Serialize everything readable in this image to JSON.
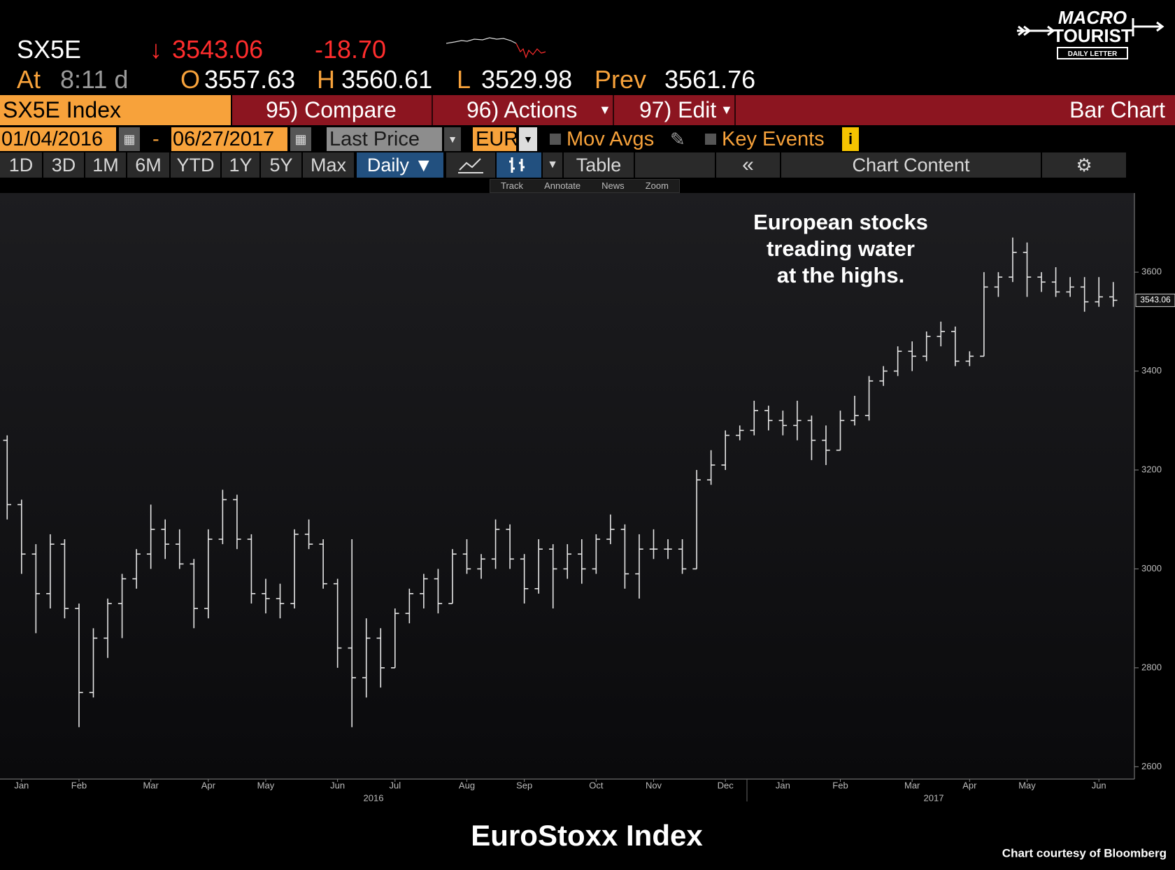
{
  "header": {
    "ticker": "SX5E",
    "direction": "↓",
    "last": "3543.06",
    "change": "-18.70",
    "at_label": "At",
    "time": "8:11 d",
    "open_label": "O",
    "open": "3557.63",
    "high_label": "H",
    "high": "3560.61",
    "low_label": "L",
    "low": "3529.98",
    "prev_label": "Prev",
    "prev": "3561.76"
  },
  "toolbar": {
    "security": "SX5E Index",
    "compare": "95) Compare",
    "actions": "96) Actions",
    "edit": "97) Edit",
    "chart_type": "Bar Chart",
    "start_date": "01/04/2016",
    "date_sep": "-",
    "end_date": "06/27/2017",
    "field": "Last Price",
    "currency": "EUR",
    "mov_avgs": "Mov Avgs",
    "key_events": "Key Events",
    "ranges": [
      "1D",
      "3D",
      "1M",
      "6M",
      "YTD",
      "1Y",
      "5Y",
      "Max"
    ],
    "frequency": "Daily ▼",
    "table": "Table",
    "chart_content": "Chart Content",
    "tools": [
      "Track",
      "Annotate",
      "News",
      "Zoom"
    ]
  },
  "logo": {
    "line1": "MACRO",
    "line2": "TOURIST",
    "line3": "DAILY LETTER"
  },
  "chart_data": {
    "type": "ohlc",
    "title": "EuroStoxx Index",
    "source": "Chart courtesy of Bloomberg",
    "annotation": [
      "European stocks",
      "treading water",
      "at the highs."
    ],
    "years": [
      "2016",
      "2017"
    ],
    "color": "#e6e6e6",
    "ylim": [
      2575,
      3760
    ],
    "yticks": [
      2600,
      2800,
      3000,
      3200,
      3400,
      3600
    ],
    "categories": [
      null,
      "Jan",
      null,
      null,
      null,
      "Feb",
      null,
      null,
      null,
      null,
      "Mar",
      null,
      null,
      null,
      "Apr",
      null,
      null,
      null,
      "May",
      null,
      null,
      null,
      null,
      "Jun",
      null,
      null,
      null,
      "Jul",
      null,
      null,
      null,
      null,
      "Aug",
      null,
      null,
      null,
      "Sep",
      null,
      null,
      null,
      null,
      "Oct",
      null,
      null,
      null,
      "Nov",
      null,
      null,
      null,
      null,
      "Dec",
      null,
      null,
      null,
      "Jan",
      null,
      null,
      null,
      "Feb",
      null,
      null,
      null,
      null,
      "Mar",
      null,
      null,
      null,
      "Apr",
      null,
      null,
      null,
      "May",
      null,
      null,
      null,
      null,
      "Jun",
      null
    ],
    "open": [
      3260,
      3130,
      3030,
      2950,
      3050,
      2920,
      2750,
      2860,
      2930,
      2980,
      3030,
      3080,
      3050,
      3010,
      2920,
      3060,
      3140,
      3060,
      2950,
      2940,
      2930,
      3070,
      3050,
      2970,
      2840,
      2780,
      2860,
      2800,
      2910,
      2950,
      2980,
      2930,
      3030,
      3000,
      3020,
      3080,
      3020,
      2960,
      3040,
      3000,
      3030,
      3000,
      3060,
      3080,
      2990,
      3040,
      3040,
      3040,
      3000,
      3180,
      3210,
      3270,
      3280,
      3320,
      3300,
      3290,
      3300,
      3260,
      3240,
      3300,
      3310,
      3380,
      3400,
      3440,
      3430,
      3470,
      3480,
      3420,
      3430,
      3570,
      3590,
      3640,
      3590,
      3580,
      3560,
      3570,
      3540,
      3550
    ],
    "high": [
      3270,
      3140,
      3050,
      3070,
      3060,
      2930,
      2880,
      2940,
      2990,
      3040,
      3130,
      3100,
      3080,
      3020,
      3080,
      3160,
      3150,
      3070,
      2980,
      2970,
      3080,
      3100,
      3060,
      2980,
      3060,
      2900,
      2880,
      2920,
      2960,
      2990,
      3000,
      3040,
      3060,
      3030,
      3100,
      3090,
      3030,
      3060,
      3050,
      3050,
      3060,
      3070,
      3110,
      3090,
      3070,
      3080,
      3060,
      3060,
      3200,
      3240,
      3280,
      3290,
      3340,
      3330,
      3320,
      3340,
      3310,
      3290,
      3320,
      3350,
      3390,
      3410,
      3450,
      3460,
      3480,
      3500,
      3490,
      3440,
      3600,
      3600,
      3670,
      3660,
      3600,
      3610,
      3590,
      3590,
      3590,
      3580
    ],
    "low": [
      3100,
      2990,
      2870,
      2920,
      2900,
      2680,
      2740,
      2820,
      2860,
      2960,
      3000,
      3020,
      3000,
      2880,
      2900,
      3050,
      3040,
      2930,
      2910,
      2900,
      2920,
      3040,
      2960,
      2800,
      2680,
      2740,
      2760,
      2800,
      2890,
      2920,
      2910,
      2930,
      2990,
      2980,
      3000,
      3000,
      2930,
      2950,
      2920,
      2980,
      2970,
      2990,
      3050,
      2960,
      2940,
      3020,
      3020,
      2990,
      3000,
      3170,
      3200,
      3260,
      3270,
      3280,
      3270,
      3260,
      3220,
      3210,
      3240,
      3290,
      3300,
      3370,
      3390,
      3400,
      3420,
      3450,
      3410,
      3410,
      3430,
      3550,
      3580,
      3550,
      3560,
      3550,
      3550,
      3520,
      3530,
      3530
    ],
    "close": [
      3130,
      3030,
      2950,
      3050,
      2920,
      2750,
      2860,
      2930,
      2980,
      3030,
      3080,
      3050,
      3010,
      2920,
      3060,
      3140,
      3060,
      2950,
      2940,
      2930,
      3070,
      3050,
      2970,
      2840,
      2780,
      2860,
      2800,
      2910,
      2950,
      2980,
      2930,
      3030,
      3000,
      3020,
      3080,
      3020,
      2960,
      3040,
      3000,
      3030,
      3000,
      3060,
      3080,
      2990,
      3040,
      3040,
      3040,
      3000,
      3180,
      3210,
      3270,
      3280,
      3320,
      3300,
      3290,
      3300,
      3260,
      3240,
      3300,
      3310,
      3380,
      3400,
      3440,
      3430,
      3470,
      3480,
      3420,
      3430,
      3570,
      3590,
      3640,
      3590,
      3580,
      3560,
      3570,
      3540,
      3550,
      3543.06
    ]
  }
}
